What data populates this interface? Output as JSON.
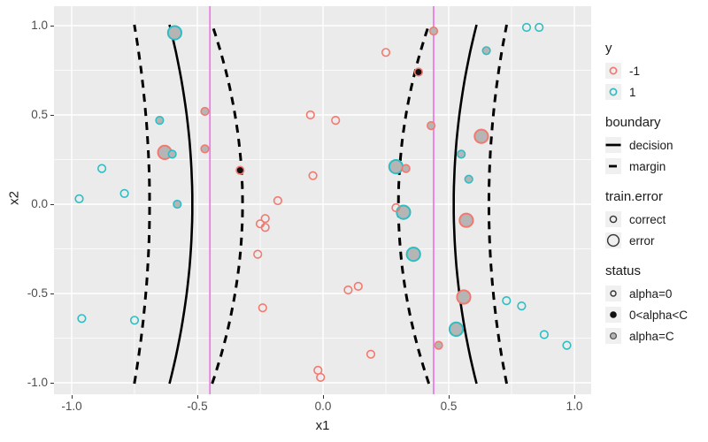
{
  "chart_data": {
    "type": "scatter",
    "xlabel": "x1",
    "ylabel": "x2",
    "xlim": [
      -1.07,
      1.07
    ],
    "ylim": [
      -1.06,
      1.11
    ],
    "ticks": {
      "x": {
        "values": [
          -1.0,
          -0.5,
          0.0,
          0.5,
          1.0
        ],
        "labels": [
          "-1.0",
          "-0.5",
          "0.0",
          "0.5",
          "1.0"
        ]
      },
      "y": {
        "values": [
          -1.0,
          -0.5,
          0.0,
          0.5,
          1.0
        ],
        "labels": [
          "-1.0",
          "-0.5",
          "0.0",
          "0.5",
          "1.0"
        ]
      }
    },
    "grid": {
      "major": true,
      "minor": true
    },
    "vlines": {
      "x": [
        -0.45,
        0.44
      ],
      "color": "#EE7AE9"
    },
    "curves": [
      {
        "type": "margin",
        "style": "dashed",
        "a": -0.69,
        "b": -0.06
      },
      {
        "type": "decision",
        "style": "solid",
        "a": -0.52,
        "b": -0.09
      },
      {
        "type": "margin",
        "style": "dashed",
        "a": -0.32,
        "b": -0.12
      },
      {
        "type": "margin",
        "style": "dashed",
        "a": 0.3,
        "b": 0.12
      },
      {
        "type": "decision",
        "style": "solid",
        "a": 0.52,
        "b": 0.09
      },
      {
        "type": "margin",
        "style": "dashed",
        "a": 0.66,
        "b": 0.07
      }
    ],
    "points": [
      {
        "x": -0.59,
        "y": 0.96,
        "cls": 1,
        "size": "large",
        "fill": "gray"
      },
      {
        "x": -0.65,
        "y": 0.47,
        "cls": 1,
        "size": "small",
        "fill": "gray"
      },
      {
        "x": -0.6,
        "y": 0.28,
        "cls": 1,
        "size": "small",
        "fill": "gray"
      },
      {
        "x": -0.58,
        "y": 0.0,
        "cls": 1,
        "size": "small",
        "fill": "gray"
      },
      {
        "x": -0.88,
        "y": 0.2,
        "cls": 1,
        "size": "small",
        "fill": "open"
      },
      {
        "x": -0.97,
        "y": 0.03,
        "cls": 1,
        "size": "small",
        "fill": "open"
      },
      {
        "x": -0.79,
        "y": 0.06,
        "cls": 1,
        "size": "small",
        "fill": "open"
      },
      {
        "x": -0.96,
        "y": -0.64,
        "cls": 1,
        "size": "small",
        "fill": "open"
      },
      {
        "x": -0.75,
        "y": -0.65,
        "cls": 1,
        "size": "small",
        "fill": "open"
      },
      {
        "x": 0.29,
        "y": 0.21,
        "cls": 1,
        "size": "large",
        "fill": "gray"
      },
      {
        "x": 0.32,
        "y": -0.045,
        "cls": 1,
        "size": "large",
        "fill": "gray"
      },
      {
        "x": 0.36,
        "y": -0.28,
        "cls": 1,
        "size": "large",
        "fill": "gray"
      },
      {
        "x": 0.53,
        "y": -0.7,
        "cls": 1,
        "size": "large",
        "fill": "gray"
      },
      {
        "x": 0.55,
        "y": 0.28,
        "cls": 1,
        "size": "small",
        "fill": "gray"
      },
      {
        "x": 0.58,
        "y": 0.14,
        "cls": 1,
        "size": "small",
        "fill": "gray"
      },
      {
        "x": 0.65,
        "y": 0.86,
        "cls": 1,
        "size": "small",
        "fill": "gray"
      },
      {
        "x": 0.81,
        "y": 0.99,
        "cls": 1,
        "size": "small",
        "fill": "open"
      },
      {
        "x": 0.86,
        "y": 0.99,
        "cls": 1,
        "size": "small",
        "fill": "open"
      },
      {
        "x": 0.73,
        "y": -0.54,
        "cls": 1,
        "size": "small",
        "fill": "open"
      },
      {
        "x": 0.79,
        "y": -0.57,
        "cls": 1,
        "size": "small",
        "fill": "open"
      },
      {
        "x": 0.88,
        "y": -0.73,
        "cls": 1,
        "size": "small",
        "fill": "open"
      },
      {
        "x": 0.97,
        "y": -0.79,
        "cls": 1,
        "size": "small",
        "fill": "open"
      },
      {
        "x": -0.63,
        "y": 0.29,
        "cls": -1,
        "size": "large",
        "fill": "gray"
      },
      {
        "x": -0.47,
        "y": 0.52,
        "cls": -1,
        "size": "small",
        "fill": "gray"
      },
      {
        "x": -0.47,
        "y": 0.31,
        "cls": -1,
        "size": "small",
        "fill": "gray"
      },
      {
        "x": -0.33,
        "y": 0.19,
        "cls": -1,
        "size": "small",
        "fill": "black"
      },
      {
        "x": 0.38,
        "y": 0.74,
        "cls": -1,
        "size": "small",
        "fill": "black"
      },
      {
        "x": 0.44,
        "y": 0.97,
        "cls": -1,
        "size": "small",
        "fill": "gray"
      },
      {
        "x": 0.43,
        "y": 0.44,
        "cls": -1,
        "size": "small",
        "fill": "gray"
      },
      {
        "x": 0.33,
        "y": 0.2,
        "cls": -1,
        "size": "small",
        "fill": "gray"
      },
      {
        "x": 0.63,
        "y": 0.38,
        "cls": -1,
        "size": "large",
        "fill": "gray"
      },
      {
        "x": 0.57,
        "y": -0.09,
        "cls": -1,
        "size": "large",
        "fill": "gray"
      },
      {
        "x": 0.56,
        "y": -0.52,
        "cls": -1,
        "size": "large",
        "fill": "gray"
      },
      {
        "x": 0.46,
        "y": -0.79,
        "cls": -1,
        "size": "small",
        "fill": "gray"
      },
      {
        "x": 0.25,
        "y": 0.85,
        "cls": -1,
        "size": "small",
        "fill": "open"
      },
      {
        "x": -0.05,
        "y": 0.5,
        "cls": -1,
        "size": "small",
        "fill": "open"
      },
      {
        "x": 0.05,
        "y": 0.47,
        "cls": -1,
        "size": "small",
        "fill": "open"
      },
      {
        "x": -0.04,
        "y": 0.16,
        "cls": -1,
        "size": "small",
        "fill": "open"
      },
      {
        "x": -0.18,
        "y": 0.02,
        "cls": -1,
        "size": "small",
        "fill": "open"
      },
      {
        "x": 0.29,
        "y": -0.02,
        "cls": -1,
        "size": "small",
        "fill": "open"
      },
      {
        "x": -0.23,
        "y": -0.08,
        "cls": -1,
        "size": "small",
        "fill": "open"
      },
      {
        "x": -0.25,
        "y": -0.11,
        "cls": -1,
        "size": "small",
        "fill": "open"
      },
      {
        "x": -0.23,
        "y": -0.13,
        "cls": -1,
        "size": "small",
        "fill": "open"
      },
      {
        "x": -0.26,
        "y": -0.28,
        "cls": -1,
        "size": "small",
        "fill": "open"
      },
      {
        "x": -0.24,
        "y": -0.58,
        "cls": -1,
        "size": "small",
        "fill": "open"
      },
      {
        "x": 0.1,
        "y": -0.48,
        "cls": -1,
        "size": "small",
        "fill": "open"
      },
      {
        "x": 0.14,
        "y": -0.46,
        "cls": -1,
        "size": "small",
        "fill": "open"
      },
      {
        "x": 0.19,
        "y": -0.84,
        "cls": -1,
        "size": "small",
        "fill": "open"
      },
      {
        "x": -0.02,
        "y": -0.93,
        "cls": -1,
        "size": "small",
        "fill": "open"
      },
      {
        "x": -0.01,
        "y": -0.97,
        "cls": -1,
        "size": "small",
        "fill": "open"
      }
    ]
  },
  "legend": {
    "sections": [
      {
        "title": "y",
        "items": [
          {
            "glyph": "ring-salmon",
            "label": "-1"
          },
          {
            "glyph": "ring-teal",
            "label": "1"
          }
        ]
      },
      {
        "title": "boundary",
        "items": [
          {
            "glyph": "line-solid",
            "label": "decision"
          },
          {
            "glyph": "line-dashed",
            "label": "margin"
          }
        ]
      },
      {
        "title": "train.error",
        "items": [
          {
            "glyph": "ring-small",
            "label": "correct"
          },
          {
            "glyph": "ring-large",
            "label": "error"
          }
        ]
      },
      {
        "title": "status",
        "items": [
          {
            "glyph": "dot-open",
            "label": "alpha=0"
          },
          {
            "glyph": "dot-black",
            "label": "0<alpha<C"
          },
          {
            "glyph": "dot-gray",
            "label": "alpha=C"
          }
        ]
      }
    ]
  },
  "colors": {
    "neg": "#F3796F",
    "pos": "#2FBDC3",
    "gray_fill": "#B5B5B5",
    "black_fill": "#111111",
    "panel": "#EBEBEB",
    "grid": "#FFFFFF",
    "vline": "#EE7AE9",
    "boundary": "#000000",
    "axis_text": "#4D4D4D",
    "title_text": "#1A1A1A",
    "key_bg": "#F0F0F0"
  }
}
